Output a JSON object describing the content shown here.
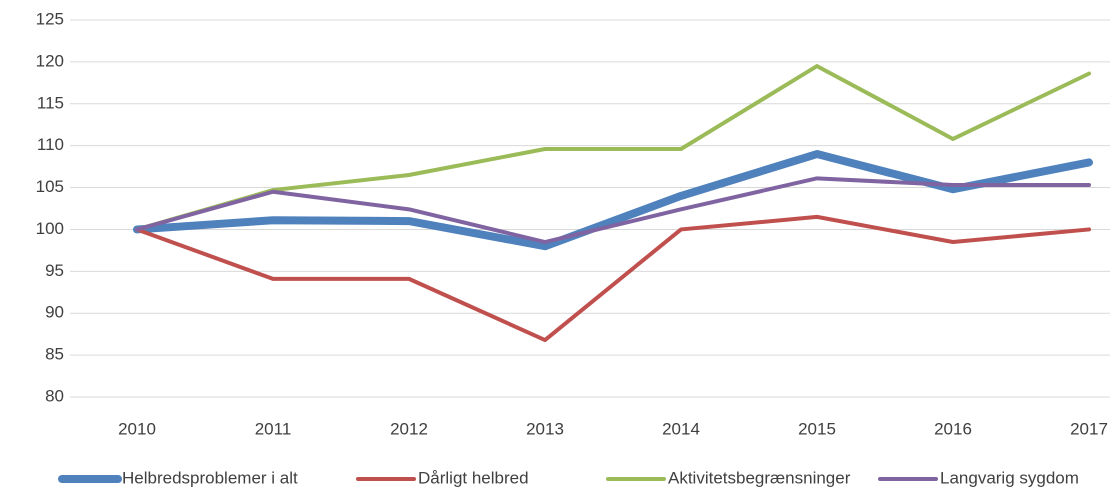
{
  "chart_data": {
    "type": "line",
    "categories": [
      "2010",
      "2011",
      "2012",
      "2013",
      "2014",
      "2015",
      "2016",
      "2017"
    ],
    "series": [
      {
        "name": "Helbredsproblemer i alt",
        "color": "#4f81bd",
        "values": [
          100,
          101.1,
          101,
          98,
          104,
          109,
          104.8,
          108
        ]
      },
      {
        "name": "Dårligt helbred",
        "color": "#c0504d",
        "values": [
          100,
          94.1,
          94.1,
          86.8,
          100,
          101.5,
          98.5,
          100
        ]
      },
      {
        "name": "Aktivitetsbegrænsninger",
        "color": "#9bbb59",
        "values": [
          100,
          104.7,
          106.5,
          109.6,
          109.6,
          119.5,
          110.8,
          118.6
        ]
      },
      {
        "name": "Langvarig sygdom",
        "color": "#8064a2",
        "values": [
          100,
          104.5,
          102.4,
          98.5,
          102.4,
          106.1,
          105.3,
          105.3
        ]
      }
    ],
    "ylim": [
      80,
      125
    ],
    "yticks": [
      80,
      85,
      90,
      95,
      100,
      105,
      110,
      115,
      120,
      125
    ],
    "grid": true
  }
}
